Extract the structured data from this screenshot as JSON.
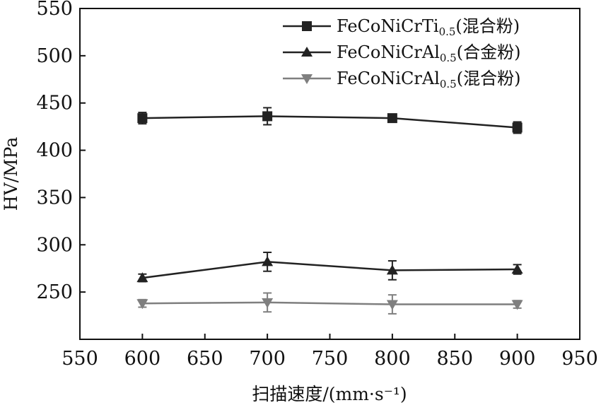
{
  "chart_data": {
    "type": "line",
    "xlabel": "扫描速度/(mm·s⁻¹)",
    "ylabel": "HV/MPa",
    "xlim": [
      550,
      950
    ],
    "ylim": [
      200,
      550
    ],
    "x_ticks": [
      550,
      600,
      650,
      700,
      750,
      800,
      850,
      900,
      950
    ],
    "y_ticks": [
      250,
      300,
      350,
      400,
      450,
      500,
      550
    ],
    "x": [
      600,
      700,
      800,
      900
    ],
    "grid": false,
    "legend_position": "top-right",
    "series": [
      {
        "name": "FeCoNiCrTi0.5(混合粉)",
        "base": "FeCoNiCrTi",
        "sub": "0.5",
        "suffix": "(混合粉)",
        "marker": "square",
        "color": "#222222",
        "values": [
          434,
          436,
          434,
          424
        ],
        "errors": [
          6,
          9,
          4,
          6
        ]
      },
      {
        "name": "FeCoNiCrAl0.5(合金粉)",
        "base": "FeCoNiCrAl",
        "sub": "0.5",
        "suffix": "(合金粉)",
        "marker": "triangle-up",
        "color": "#222222",
        "values": [
          265,
          282,
          273,
          274
        ],
        "errors": [
          4,
          10,
          10,
          5
        ]
      },
      {
        "name": "FeCoNiCrAl0.5(混合粉)",
        "base": "FeCoNiCrAl",
        "sub": "0.5",
        "suffix": "(混合粉)",
        "marker": "triangle-down",
        "color": "#7f7f7f",
        "values": [
          238,
          239,
          237,
          237
        ],
        "errors": [
          4,
          10,
          10,
          4
        ]
      }
    ]
  }
}
